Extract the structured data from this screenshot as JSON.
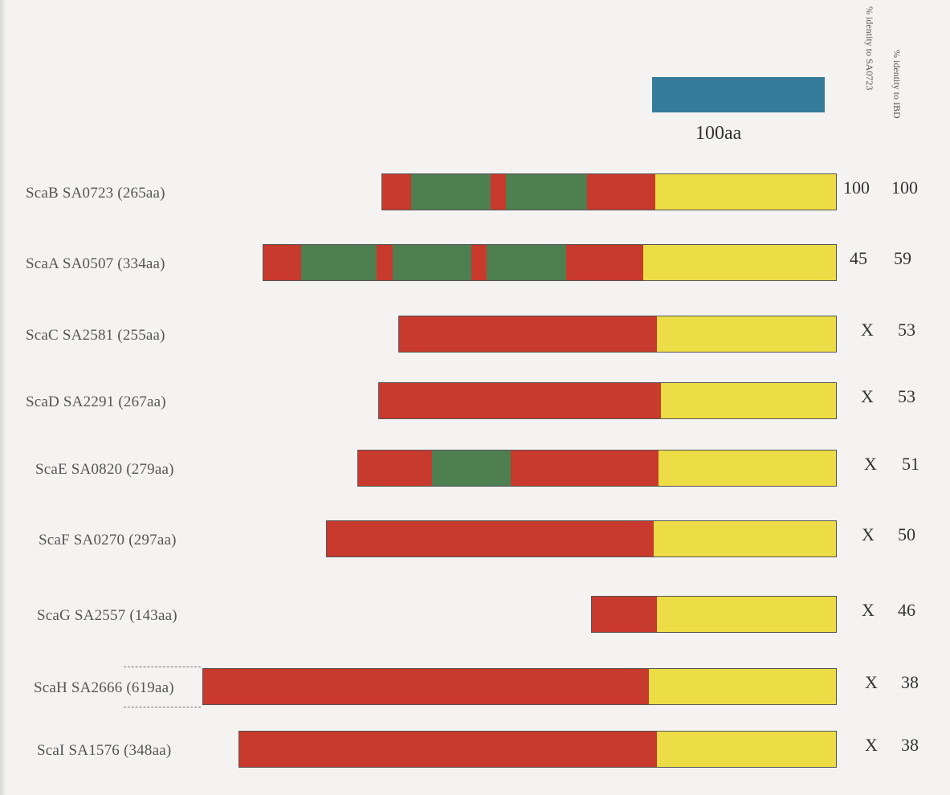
{
  "scale": {
    "label": "100aa",
    "color": "#357b9b"
  },
  "headers": {
    "identity_sa0723": "% identity to SA0723",
    "identity_ibd": "% identity to IBD"
  },
  "colors": {
    "red": "#c8392e",
    "green": "#4e7f50",
    "yellow": "#ecdc46",
    "outline": "#555555"
  },
  "proteins": [
    {
      "label": "ScaB SA0723 (265aa)",
      "length_aa": 265,
      "identity_sa0723": "100",
      "identity_ibd": "100",
      "segments": [
        [
          "red",
          0,
          17
        ],
        [
          "green",
          17,
          63
        ],
        [
          "red",
          63,
          72
        ],
        [
          "green",
          72,
          119
        ],
        [
          "red",
          119,
          159
        ],
        [
          "yellow",
          159,
          265
        ]
      ]
    },
    {
      "label": "ScaA SA0507 (334aa)",
      "length_aa": 334,
      "identity_sa0723": "45",
      "identity_ibd": "59",
      "segments": [
        [
          "red",
          0,
          22
        ],
        [
          "green",
          22,
          66
        ],
        [
          "red",
          66,
          75
        ],
        [
          "green",
          75,
          121
        ],
        [
          "red",
          121,
          130
        ],
        [
          "green",
          130,
          176
        ],
        [
          "red",
          176,
          221
        ],
        [
          "yellow",
          221,
          334
        ]
      ]
    },
    {
      "label": "ScaC SA2581 (255aa)",
      "length_aa": 255,
      "identity_sa0723": "X",
      "identity_ibd": "53",
      "segments": [
        [
          "red",
          0,
          150
        ],
        [
          "yellow",
          150,
          255
        ]
      ]
    },
    {
      "label": "ScaD SA2291 (267aa)",
      "length_aa": 267,
      "identity_sa0723": "X",
      "identity_ibd": "53",
      "segments": [
        [
          "red",
          0,
          164
        ],
        [
          "yellow",
          164,
          267
        ]
      ]
    },
    {
      "label": "ScaE SA0820 (279aa)",
      "length_aa": 279,
      "identity_sa0723": "X",
      "identity_ibd": "51",
      "segments": [
        [
          "red",
          0,
          43
        ],
        [
          "green",
          43,
          89
        ],
        [
          "red",
          89,
          175
        ],
        [
          "yellow",
          175,
          279
        ]
      ]
    },
    {
      "label": "ScaF SA0270 (297aa)",
      "length_aa": 297,
      "identity_sa0723": "X",
      "identity_ibd": "50",
      "segments": [
        [
          "red",
          0,
          190
        ],
        [
          "yellow",
          190,
          297
        ]
      ]
    },
    {
      "label": "ScaG SA2557 (143aa)",
      "length_aa": 143,
      "identity_sa0723": "X",
      "identity_ibd": "46",
      "segments": [
        [
          "red",
          0,
          38
        ],
        [
          "yellow",
          38,
          143
        ]
      ]
    },
    {
      "label": "ScaH SA2666 (619aa)",
      "length_aa": 619,
      "identity_sa0723": "X",
      "identity_ibd": "38",
      "segments": [
        [
          "red",
          0,
          259
        ],
        [
          "yellow",
          259,
          369
        ]
      ]
    },
    {
      "label": "ScaI SA1576 (348aa)",
      "length_aa": 348,
      "identity_sa0723": "X",
      "identity_ibd": "38",
      "segments": [
        [
          "red",
          0,
          243
        ],
        [
          "yellow",
          243,
          348
        ]
      ]
    }
  ]
}
